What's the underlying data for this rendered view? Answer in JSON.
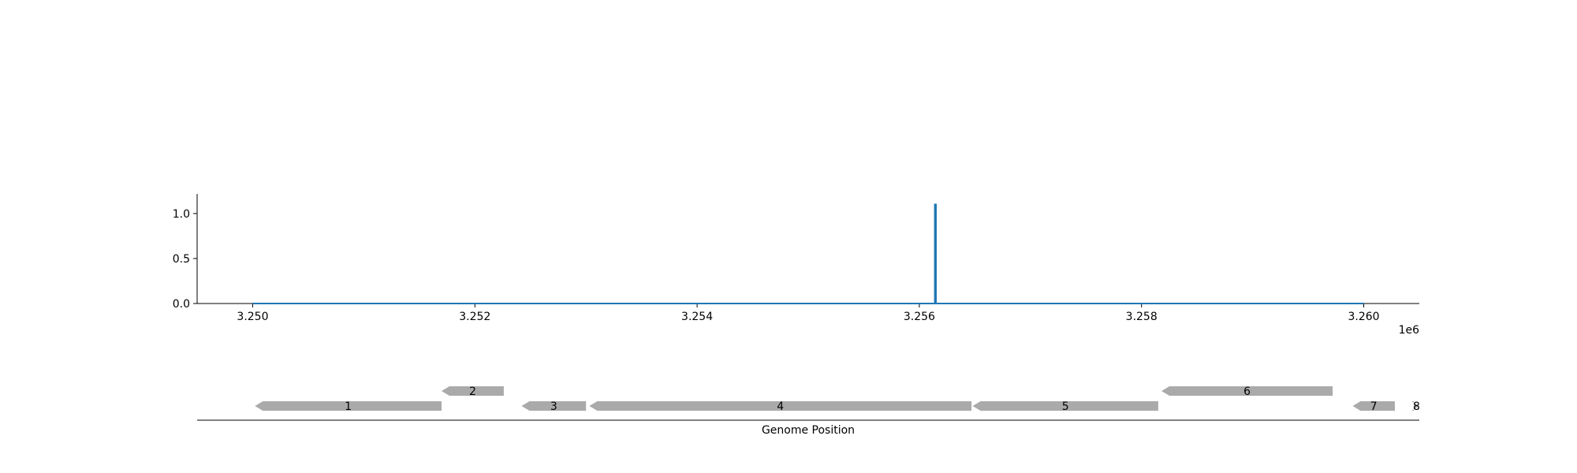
{
  "chart_data": [
    {
      "type": "line",
      "title": "",
      "xlabel": "",
      "ylabel": "",
      "x_offset_text": "1e6",
      "xlim": [
        3249500,
        3260500
      ],
      "ylim": [
        0.0,
        1.2
      ],
      "x_ticks": [
        3250000,
        3252000,
        3254000,
        3256000,
        3258000,
        3260000
      ],
      "x_tick_labels": [
        "3.250",
        "3.252",
        "3.254",
        "3.256",
        "3.258",
        "3.260"
      ],
      "y_ticks": [
        0.0,
        0.5,
        1.0
      ],
      "y_tick_labels": [
        "0.0",
        "0.5",
        "1.0"
      ],
      "grid": false,
      "series": [
        {
          "color": "#1f77b4",
          "x": [
            3250000,
            3256140,
            3256140,
            3256150,
            3256150,
            3260000
          ],
          "y": [
            0.0,
            0.0,
            1.1,
            1.1,
            0.0,
            0.0
          ]
        }
      ]
    },
    {
      "type": "gene-track",
      "xlabel": "Genome Position",
      "xlim": [
        3249500,
        3260500
      ],
      "feature_color": "#aaaaaa",
      "features": [
        {
          "label": "1",
          "start": 3250020,
          "end": 3251700,
          "strand": -1,
          "row": 0
        },
        {
          "label": "2",
          "start": 3251700,
          "end": 3252260,
          "strand": -1,
          "row": 1
        },
        {
          "label": "3",
          "start": 3252420,
          "end": 3253000,
          "strand": -1,
          "row": 0
        },
        {
          "label": "4",
          "start": 3253030,
          "end": 3256470,
          "strand": -1,
          "row": 0
        },
        {
          "label": "5",
          "start": 3256480,
          "end": 3258150,
          "strand": -1,
          "row": 0
        },
        {
          "label": "6",
          "start": 3258180,
          "end": 3259720,
          "strand": -1,
          "row": 1
        },
        {
          "label": "7",
          "start": 3259900,
          "end": 3260280,
          "strand": -1,
          "row": 0
        },
        {
          "label": "8",
          "start": 3260450,
          "end": 3260500,
          "strand": 1,
          "row": 0
        }
      ]
    }
  ]
}
